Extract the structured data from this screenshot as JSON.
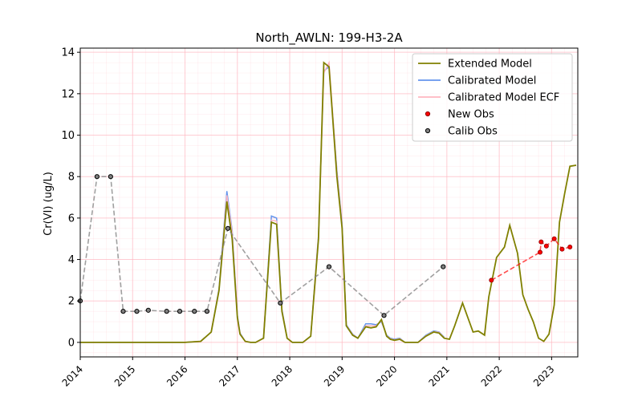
{
  "chart_data": {
    "type": "line",
    "title": "North_AWLN: 199-H3-2A",
    "xlabel": "",
    "ylabel": "Cr(VI) (ug/L)",
    "xlim": [
      2014.0,
      2023.5
    ],
    "ylim": [
      -0.7,
      14.2
    ],
    "x_ticks": [
      "2014",
      "2015",
      "2016",
      "2017",
      "2018",
      "2019",
      "2020",
      "2021",
      "2022",
      "2023"
    ],
    "y_ticks": [
      "0",
      "2",
      "4",
      "6",
      "8",
      "10",
      "12",
      "14"
    ],
    "grid": "major and minor",
    "legend_position": "top-right",
    "series": [
      {
        "name": "Extended Model",
        "color": "#808000",
        "style": "solid",
        "x": [
          2014.0,
          2016.0,
          2016.3,
          2016.5,
          2016.65,
          2016.8,
          2016.9,
          2017.0,
          2017.05,
          2017.15,
          2017.25,
          2017.35,
          2017.5,
          2017.65,
          2017.75,
          2017.85,
          2017.95,
          2018.05,
          2018.15,
          2018.25,
          2018.4,
          2018.55,
          2018.65,
          2018.75,
          2018.9,
          2019.0,
          2019.08,
          2019.2,
          2019.3,
          2019.45,
          2019.55,
          2019.65,
          2019.75,
          2019.85,
          2019.92,
          2020.0,
          2020.1,
          2020.2,
          2020.3,
          2020.45,
          2020.6,
          2020.75,
          2020.85,
          2020.95,
          2021.05,
          2021.15,
          2021.3,
          2021.5,
          2021.6,
          2021.72,
          2021.8,
          2021.95,
          2022.1,
          2022.2,
          2022.35,
          2022.45,
          2022.55,
          2022.65,
          2022.75,
          2022.85,
          2022.95,
          2023.05,
          2023.15,
          2023.25,
          2023.35,
          2023.47
        ],
        "y": [
          0.0,
          0.0,
          0.05,
          0.5,
          2.5,
          6.8,
          5.0,
          1.2,
          0.4,
          0.05,
          0.0,
          0.0,
          0.2,
          5.8,
          5.7,
          1.5,
          0.2,
          0.0,
          0.0,
          0.0,
          0.3,
          5.0,
          13.5,
          13.3,
          8.0,
          5.5,
          0.8,
          0.35,
          0.2,
          0.75,
          0.7,
          0.75,
          1.1,
          0.3,
          0.15,
          0.1,
          0.15,
          0.0,
          0.0,
          0.0,
          0.3,
          0.5,
          0.45,
          0.2,
          0.15,
          0.8,
          1.9,
          0.5,
          0.55,
          0.35,
          2.2,
          4.1,
          4.6,
          5.65,
          4.3,
          2.3,
          1.6,
          1.0,
          0.2,
          0.05,
          0.4,
          1.8,
          5.8,
          7.2,
          8.5,
          8.55
        ],
        "x_shift": 0
      },
      {
        "name": "Calibrated Model",
        "color": "#6495ed",
        "style": "solid",
        "x": [
          2014.0,
          2016.0,
          2016.3,
          2016.5,
          2016.65,
          2016.8,
          2016.9,
          2017.0,
          2017.05,
          2017.15,
          2017.25,
          2017.35,
          2017.5,
          2017.65,
          2017.75,
          2017.85,
          2017.95,
          2018.05,
          2018.15,
          2018.25,
          2018.4,
          2018.55,
          2018.65,
          2018.75,
          2018.9,
          2019.0,
          2019.08,
          2019.2,
          2019.3,
          2019.45,
          2019.55,
          2019.65,
          2019.75,
          2019.85,
          2019.92,
          2020.0,
          2020.1,
          2020.2,
          2020.3,
          2020.45,
          2020.6,
          2020.75,
          2020.85,
          2020.95
        ],
        "y": [
          0.0,
          0.0,
          0.05,
          0.5,
          2.6,
          7.3,
          5.4,
          1.3,
          0.45,
          0.05,
          0.0,
          0.0,
          0.2,
          6.1,
          6.0,
          1.6,
          0.2,
          0.0,
          0.0,
          0.0,
          0.3,
          5.2,
          13.1,
          13.3,
          8.3,
          5.7,
          0.85,
          0.4,
          0.2,
          0.9,
          0.9,
          0.85,
          1.0,
          0.35,
          0.2,
          0.15,
          0.2,
          0.0,
          0.0,
          0.0,
          0.35,
          0.55,
          0.5,
          0.25
        ]
      },
      {
        "name": "Calibrated Model ECF",
        "color": "#ffb6c1",
        "style": "solid",
        "x": [
          2014.0,
          2016.0,
          2016.3,
          2016.5,
          2016.65,
          2016.8,
          2016.9,
          2017.0,
          2017.05,
          2017.15,
          2017.25,
          2017.35,
          2017.5,
          2017.65,
          2017.75,
          2017.85,
          2017.95,
          2018.05,
          2018.15,
          2018.25,
          2018.4,
          2018.55,
          2018.65,
          2018.75,
          2018.9,
          2019.0,
          2019.08,
          2019.2,
          2019.3,
          2019.45,
          2019.55,
          2019.65,
          2019.75,
          2019.85,
          2019.92,
          2020.0,
          2020.1,
          2020.2,
          2020.3,
          2020.45,
          2020.6,
          2020.75,
          2020.85,
          2020.95
        ],
        "y": [
          0.0,
          0.0,
          0.05,
          0.5,
          2.55,
          7.1,
          5.3,
          1.25,
          0.42,
          0.05,
          0.0,
          0.0,
          0.2,
          5.9,
          5.85,
          1.55,
          0.2,
          0.0,
          0.0,
          0.0,
          0.3,
          5.1,
          13.0,
          13.5,
          8.2,
          5.6,
          0.82,
          0.38,
          0.2,
          0.8,
          0.8,
          0.8,
          1.05,
          0.32,
          0.18,
          0.12,
          0.18,
          0.0,
          0.0,
          0.0,
          0.32,
          0.52,
          0.48,
          0.22
        ]
      },
      {
        "name": "New Obs",
        "color": "#ff0000",
        "style": "scatter-dashed",
        "x": [
          2021.85,
          2022.78,
          2022.8,
          2022.9,
          2023.05,
          2023.2,
          2023.35
        ],
        "y": [
          3.0,
          4.35,
          4.85,
          4.65,
          5.0,
          4.5,
          4.6
        ]
      },
      {
        "name": "Calib Obs",
        "color": "#808080",
        "style": "scatter-dashed",
        "x": [
          2014.0,
          2014.32,
          2014.58,
          2014.82,
          2015.08,
          2015.3,
          2015.65,
          2015.9,
          2016.18,
          2016.42,
          2016.82,
          2017.82,
          2018.75,
          2019.8,
          2020.93
        ],
        "y": [
          2.0,
          8.0,
          8.0,
          1.5,
          1.5,
          1.55,
          1.5,
          1.5,
          1.5,
          1.5,
          5.5,
          1.9,
          3.65,
          1.3,
          3.65
        ]
      }
    ]
  }
}
